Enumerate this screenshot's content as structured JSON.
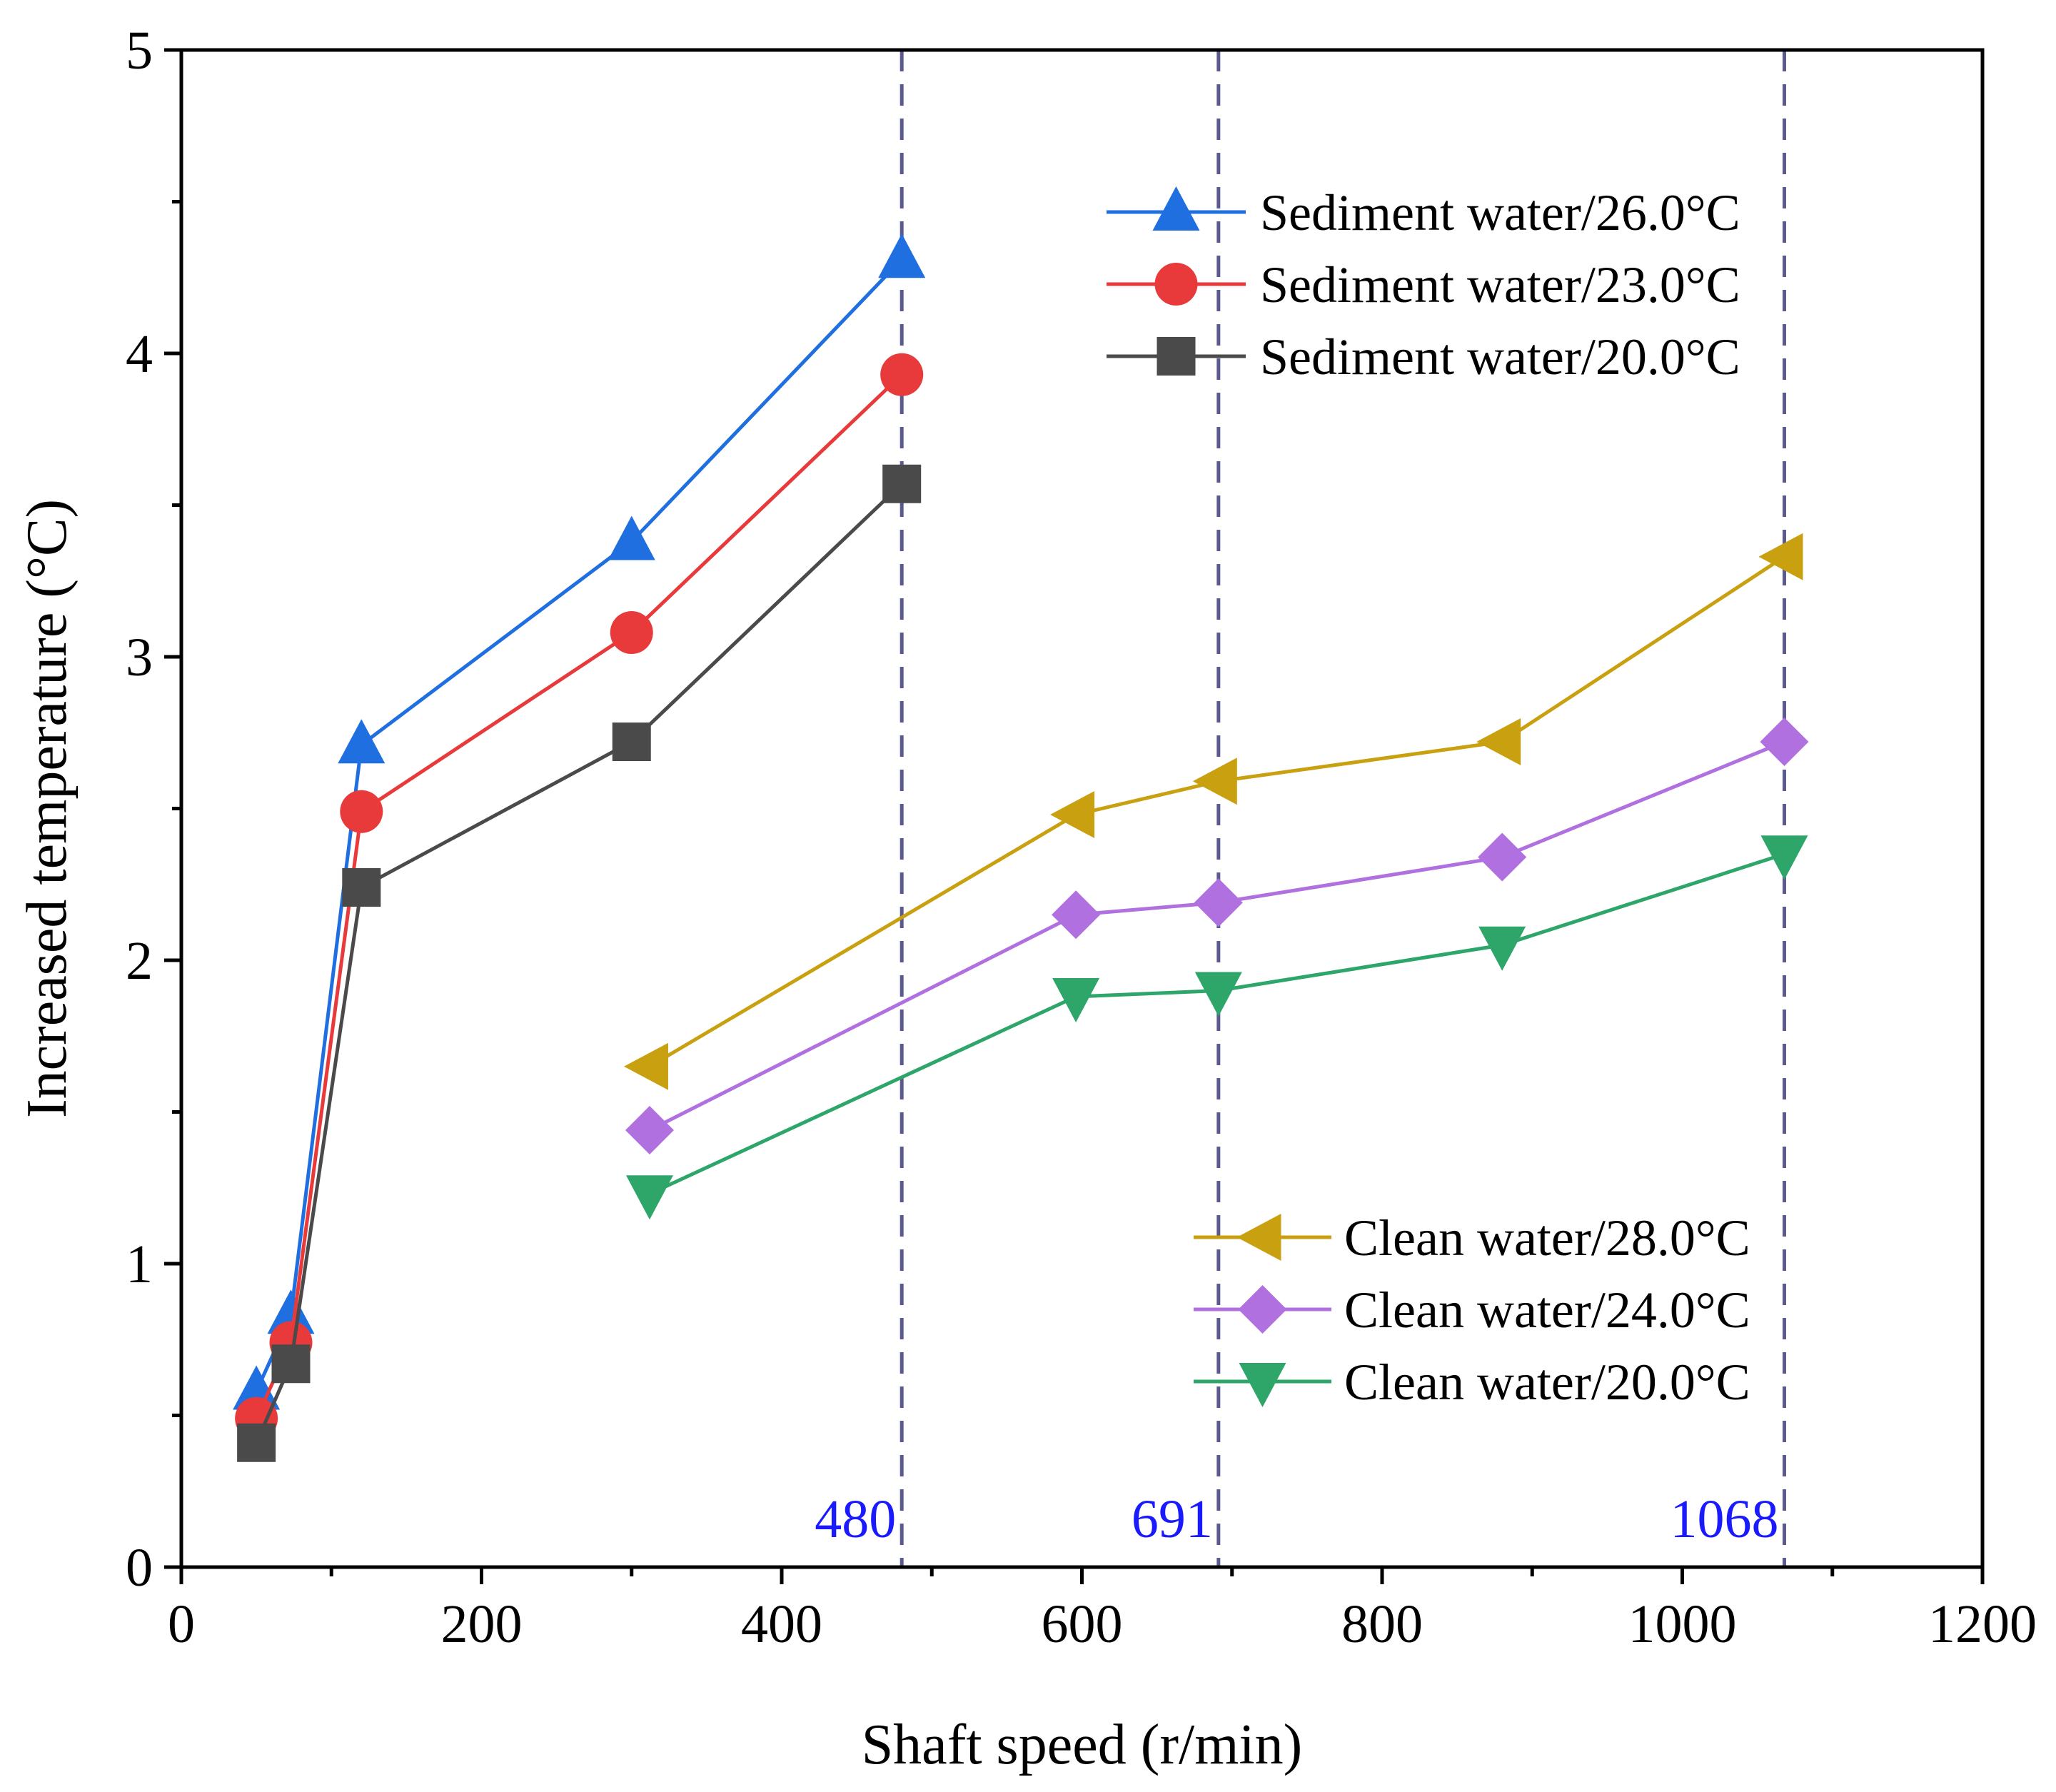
{
  "chart_data": {
    "type": "line",
    "title": "",
    "xlabel": "Shaft speed (r/min)",
    "ylabel": "Increased temperature (°C)",
    "xlim": [
      0,
      1200
    ],
    "ylim": [
      0,
      5
    ],
    "xticks": [
      0,
      200,
      400,
      600,
      800,
      1000,
      1200
    ],
    "yticks": [
      0,
      1,
      2,
      3,
      4,
      5
    ],
    "xtick_labels": [
      "0",
      "200",
      "400",
      "600",
      "800",
      "1000",
      "1200"
    ],
    "ytick_labels": [
      "0",
      "1",
      "2",
      "3",
      "4",
      "5"
    ],
    "grid": false,
    "reference_lines": [
      {
        "x": 480,
        "label": "480"
      },
      {
        "x": 691,
        "label": "691"
      },
      {
        "x": 1068,
        "label": "1068"
      }
    ],
    "legends": [
      {
        "placement": "top-right",
        "entries": [
          0,
          1,
          2
        ]
      },
      {
        "placement": "bottom-right",
        "entries": [
          3,
          4,
          5
        ]
      }
    ],
    "series": [
      {
        "name": "Sediment water/26.0°C",
        "color": "#1f6fe0",
        "marker": "triangle-up",
        "x": [
          50,
          73,
          120,
          300,
          480
        ],
        "y": [
          0.58,
          0.83,
          2.71,
          3.38,
          4.31
        ]
      },
      {
        "name": "Sediment water/23.0°C",
        "color": "#e83a3a",
        "marker": "circle",
        "x": [
          50,
          73,
          120,
          300,
          480
        ],
        "y": [
          0.49,
          0.74,
          2.49,
          3.08,
          3.93
        ]
      },
      {
        "name": "Sediment water/20.0°C",
        "color": "#4a4a4a",
        "marker": "square",
        "x": [
          50,
          73,
          120,
          300,
          480
        ],
        "y": [
          0.41,
          0.67,
          2.24,
          2.72,
          3.57
        ]
      },
      {
        "name": "Clean water/28.0°C",
        "color": "#c9a010",
        "marker": "triangle-left",
        "x": [
          312,
          596,
          691,
          880,
          1068
        ],
        "y": [
          1.65,
          2.48,
          2.59,
          2.72,
          3.33
        ]
      },
      {
        "name": "Clean water/24.0°C",
        "color": "#b070e0",
        "marker": "diamond",
        "x": [
          312,
          596,
          691,
          880,
          1068
        ],
        "y": [
          1.44,
          2.15,
          2.19,
          2.34,
          2.72
        ]
      },
      {
        "name": "Clean water/20.0°C",
        "color": "#2ea66a",
        "marker": "triangle-down",
        "x": [
          312,
          596,
          691,
          880,
          1068
        ],
        "y": [
          1.23,
          1.88,
          1.9,
          2.05,
          2.35
        ]
      }
    ]
  }
}
